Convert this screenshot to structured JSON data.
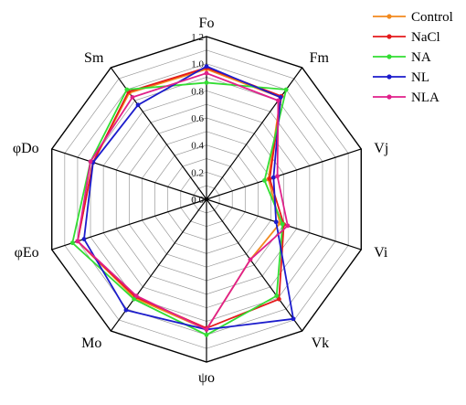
{
  "chart_data": {
    "type": "radar",
    "axes": [
      "Fo",
      "Fm",
      "Vj",
      "Vi",
      "Vk",
      "ψo",
      "Mo",
      "φEo",
      "φDo",
      "Sm"
    ],
    "r_ticks": [
      "0.0",
      "0.2",
      "0.4",
      "0.6",
      "0.8",
      "1.0",
      "1.2"
    ],
    "rlim": [
      0,
      1.2
    ],
    "grid": true,
    "legend_position": "top-right",
    "series": [
      {
        "name": "Control",
        "color": "#f28a1e",
        "values": [
          0.96,
          0.93,
          0.48,
          0.57,
          0.55,
          0.96,
          0.9,
          1.0,
          0.88,
          0.97
        ]
      },
      {
        "name": "NaCl",
        "color": "#e41a1c",
        "values": [
          0.97,
          0.94,
          0.49,
          0.6,
          0.91,
          0.95,
          0.89,
          1.0,
          0.88,
          0.98
        ]
      },
      {
        "name": "NA",
        "color": "#33dd33",
        "values": [
          0.86,
          1.0,
          0.45,
          0.59,
          0.88,
          1.0,
          0.91,
          1.04,
          0.9,
          1.0
        ]
      },
      {
        "name": "NL",
        "color": "#1c1ccc",
        "values": [
          0.98,
          0.93,
          0.52,
          0.54,
          1.09,
          0.96,
          1.01,
          0.95,
          0.88,
          0.86
        ]
      },
      {
        "name": "NLA",
        "color": "#e0208a",
        "values": [
          0.93,
          0.9,
          0.55,
          0.63,
          0.55,
          0.96,
          0.88,
          1.0,
          0.9,
          0.93
        ]
      }
    ]
  }
}
